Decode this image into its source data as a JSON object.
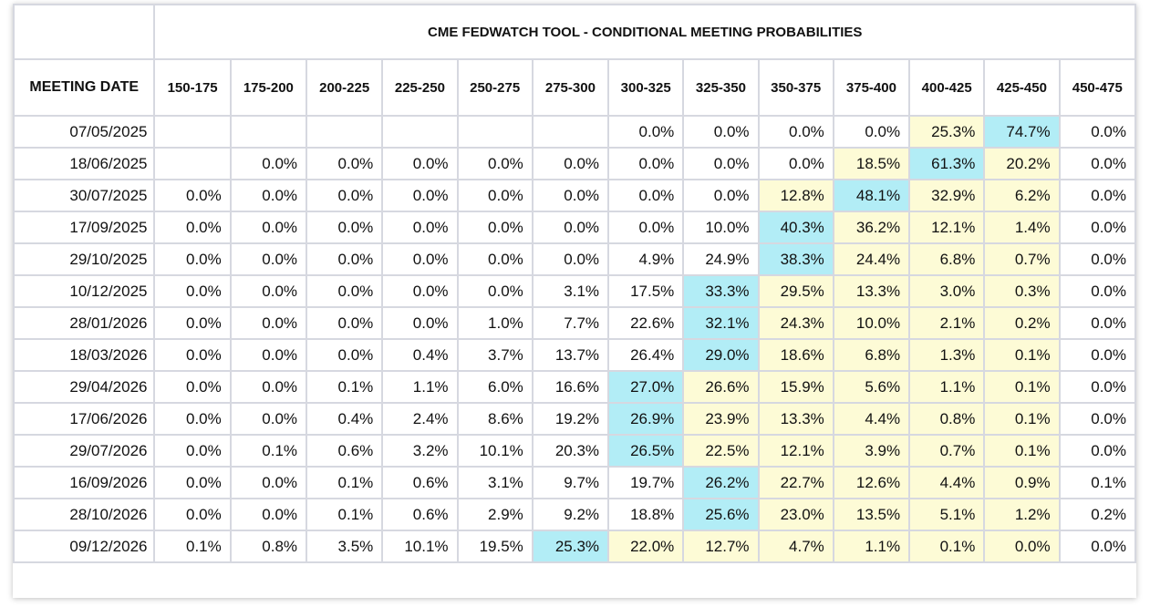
{
  "table": {
    "title": "CME FEDWATCH TOOL - CONDITIONAL MEETING PROBABILITIES",
    "date_header": "MEETING DATE",
    "columns": [
      "150-175",
      "175-200",
      "200-225",
      "225-250",
      "250-275",
      "275-300",
      "300-325",
      "325-350",
      "350-375",
      "375-400",
      "400-425",
      "425-450",
      "450-475"
    ],
    "colors": {
      "highest": "#b2edf6",
      "shaded": "#fdfbd6",
      "plain": "#ffffff"
    },
    "rows": [
      {
        "date": "07/05/2025",
        "values": [
          "",
          "",
          "",
          "",
          "",
          "",
          "0.0%",
          "0.0%",
          "0.0%",
          "0.0%",
          "25.3%",
          "74.7%",
          "0.0%"
        ],
        "shade": [
          0,
          0,
          0,
          0,
          0,
          0,
          0,
          0,
          0,
          0,
          1,
          2,
          0
        ]
      },
      {
        "date": "18/06/2025",
        "values": [
          "",
          "0.0%",
          "0.0%",
          "0.0%",
          "0.0%",
          "0.0%",
          "0.0%",
          "0.0%",
          "0.0%",
          "18.5%",
          "61.3%",
          "20.2%",
          "0.0%"
        ],
        "shade": [
          0,
          0,
          0,
          0,
          0,
          0,
          0,
          0,
          0,
          1,
          2,
          1,
          0
        ]
      },
      {
        "date": "30/07/2025",
        "values": [
          "0.0%",
          "0.0%",
          "0.0%",
          "0.0%",
          "0.0%",
          "0.0%",
          "0.0%",
          "0.0%",
          "12.8%",
          "48.1%",
          "32.9%",
          "6.2%",
          "0.0%"
        ],
        "shade": [
          0,
          0,
          0,
          0,
          0,
          0,
          0,
          0,
          1,
          2,
          1,
          1,
          0
        ]
      },
      {
        "date": "17/09/2025",
        "values": [
          "0.0%",
          "0.0%",
          "0.0%",
          "0.0%",
          "0.0%",
          "0.0%",
          "0.0%",
          "10.0%",
          "40.3%",
          "36.2%",
          "12.1%",
          "1.4%",
          "0.0%"
        ],
        "shade": [
          0,
          0,
          0,
          0,
          0,
          0,
          0,
          0,
          2,
          1,
          1,
          1,
          0
        ]
      },
      {
        "date": "29/10/2025",
        "values": [
          "0.0%",
          "0.0%",
          "0.0%",
          "0.0%",
          "0.0%",
          "0.0%",
          "4.9%",
          "24.9%",
          "38.3%",
          "24.4%",
          "6.8%",
          "0.7%",
          "0.0%"
        ],
        "shade": [
          0,
          0,
          0,
          0,
          0,
          0,
          0,
          0,
          2,
          1,
          1,
          1,
          0
        ]
      },
      {
        "date": "10/12/2025",
        "values": [
          "0.0%",
          "0.0%",
          "0.0%",
          "0.0%",
          "0.0%",
          "3.1%",
          "17.5%",
          "33.3%",
          "29.5%",
          "13.3%",
          "3.0%",
          "0.3%",
          "0.0%"
        ],
        "shade": [
          0,
          0,
          0,
          0,
          0,
          0,
          0,
          2,
          1,
          1,
          1,
          1,
          0
        ]
      },
      {
        "date": "28/01/2026",
        "values": [
          "0.0%",
          "0.0%",
          "0.0%",
          "0.0%",
          "1.0%",
          "7.7%",
          "22.6%",
          "32.1%",
          "24.3%",
          "10.0%",
          "2.1%",
          "0.2%",
          "0.0%"
        ],
        "shade": [
          0,
          0,
          0,
          0,
          0,
          0,
          0,
          2,
          1,
          1,
          1,
          1,
          0
        ]
      },
      {
        "date": "18/03/2026",
        "values": [
          "0.0%",
          "0.0%",
          "0.0%",
          "0.4%",
          "3.7%",
          "13.7%",
          "26.4%",
          "29.0%",
          "18.6%",
          "6.8%",
          "1.3%",
          "0.1%",
          "0.0%"
        ],
        "shade": [
          0,
          0,
          0,
          0,
          0,
          0,
          0,
          2,
          1,
          1,
          1,
          1,
          0
        ]
      },
      {
        "date": "29/04/2026",
        "values": [
          "0.0%",
          "0.0%",
          "0.1%",
          "1.1%",
          "6.0%",
          "16.6%",
          "27.0%",
          "26.6%",
          "15.9%",
          "5.6%",
          "1.1%",
          "0.1%",
          "0.0%"
        ],
        "shade": [
          0,
          0,
          0,
          0,
          0,
          0,
          2,
          1,
          1,
          1,
          1,
          1,
          0
        ]
      },
      {
        "date": "17/06/2026",
        "values": [
          "0.0%",
          "0.0%",
          "0.4%",
          "2.4%",
          "8.6%",
          "19.2%",
          "26.9%",
          "23.9%",
          "13.3%",
          "4.4%",
          "0.8%",
          "0.1%",
          "0.0%"
        ],
        "shade": [
          0,
          0,
          0,
          0,
          0,
          0,
          2,
          1,
          1,
          1,
          1,
          1,
          0
        ]
      },
      {
        "date": "29/07/2026",
        "values": [
          "0.0%",
          "0.1%",
          "0.6%",
          "3.2%",
          "10.1%",
          "20.3%",
          "26.5%",
          "22.5%",
          "12.1%",
          "3.9%",
          "0.7%",
          "0.1%",
          "0.0%"
        ],
        "shade": [
          0,
          0,
          0,
          0,
          0,
          0,
          2,
          1,
          1,
          1,
          1,
          1,
          0
        ]
      },
      {
        "date": "16/09/2026",
        "values": [
          "0.0%",
          "0.0%",
          "0.1%",
          "0.6%",
          "3.1%",
          "9.7%",
          "19.7%",
          "26.2%",
          "22.7%",
          "12.6%",
          "4.4%",
          "0.9%",
          "0.1%"
        ],
        "shade": [
          0,
          0,
          0,
          0,
          0,
          0,
          0,
          2,
          1,
          1,
          1,
          1,
          0
        ]
      },
      {
        "date": "28/10/2026",
        "values": [
          "0.0%",
          "0.0%",
          "0.1%",
          "0.6%",
          "2.9%",
          "9.2%",
          "18.8%",
          "25.6%",
          "23.0%",
          "13.5%",
          "5.1%",
          "1.2%",
          "0.2%"
        ],
        "shade": [
          0,
          0,
          0,
          0,
          0,
          0,
          0,
          2,
          1,
          1,
          1,
          1,
          0
        ]
      },
      {
        "date": "09/12/2026",
        "values": [
          "0.1%",
          "0.8%",
          "3.5%",
          "10.1%",
          "19.5%",
          "25.3%",
          "22.0%",
          "12.7%",
          "4.7%",
          "1.1%",
          "0.1%",
          "0.0%",
          "0.0%"
        ],
        "shade": [
          0,
          0,
          0,
          0,
          0,
          2,
          1,
          1,
          1,
          1,
          1,
          1,
          0
        ]
      }
    ]
  }
}
